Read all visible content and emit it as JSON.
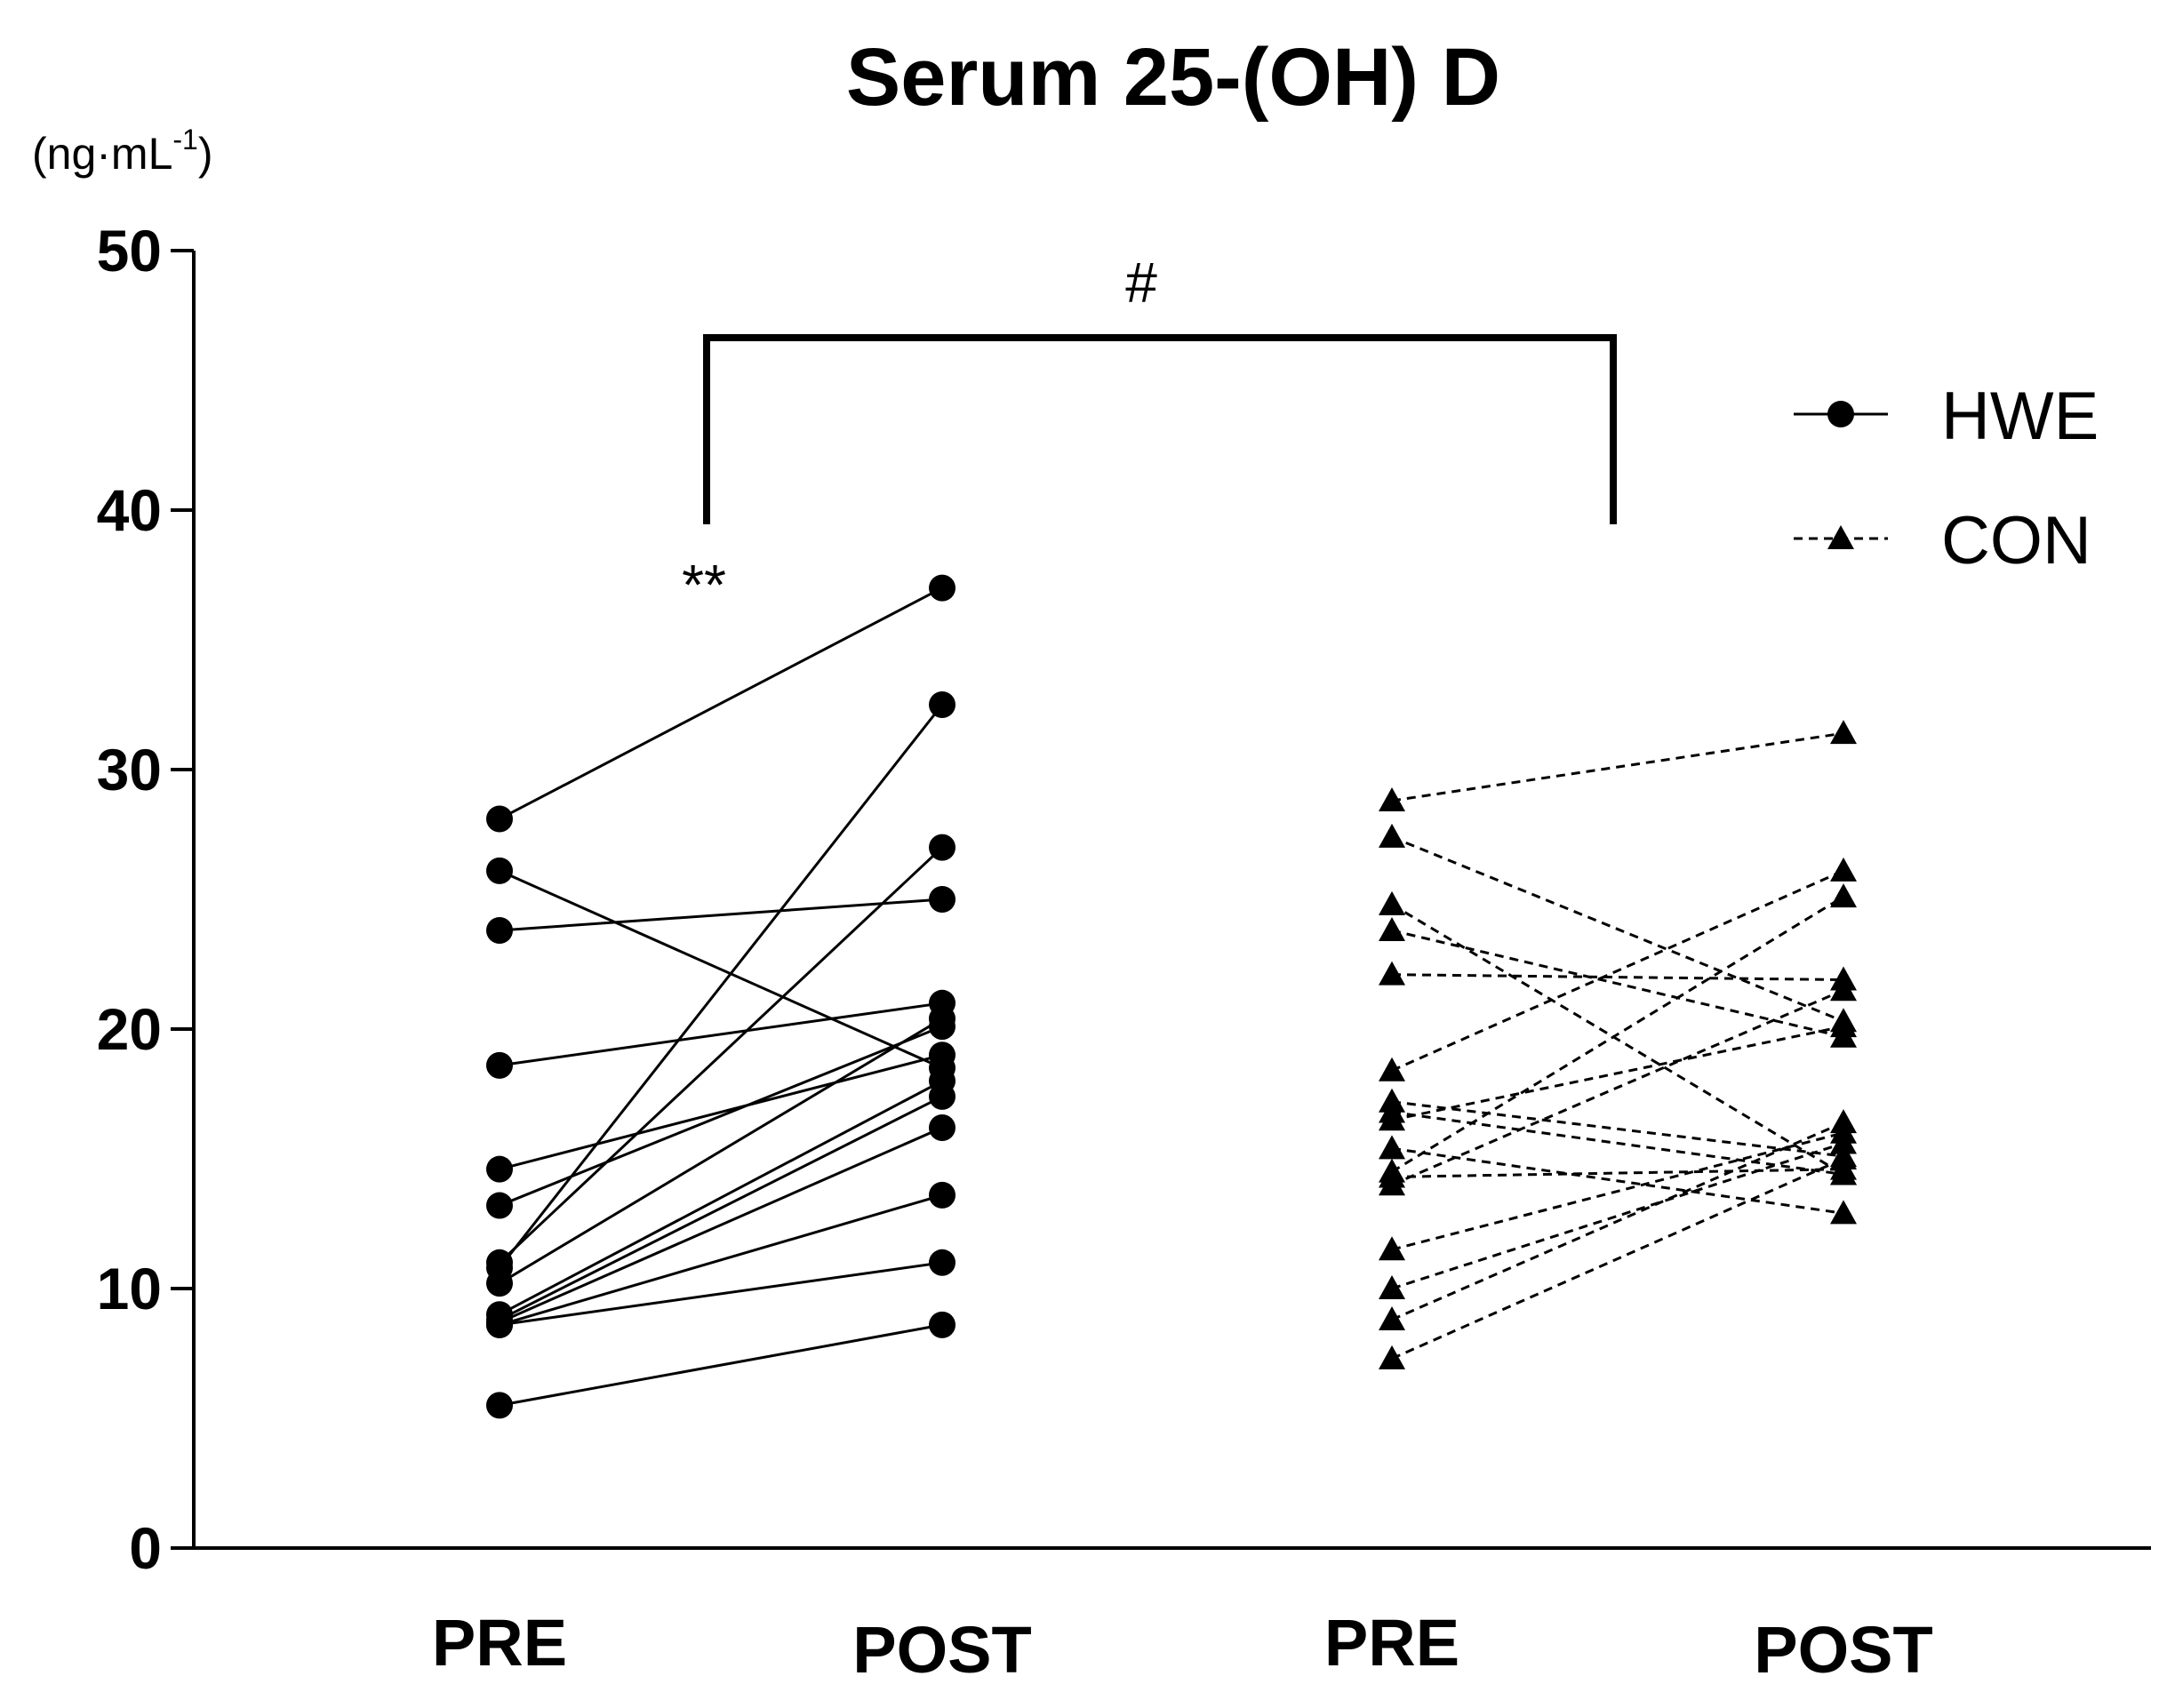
{
  "chart_data": {
    "type": "scatter",
    "title": "Serum 25-(OH) D",
    "ylabel": "(ng·mL",
    "ylabel_sup": "-1",
    "ylabel_close": ")",
    "ylim": [
      0,
      50
    ],
    "yticks": [
      "0",
      "10",
      "20",
      "30",
      "40",
      "50"
    ],
    "categories": [
      "PRE",
      "POST",
      "PRE",
      "POST"
    ],
    "legend": {
      "placement": "top-right",
      "entries": [
        {
          "name": "HWE",
          "marker": "circle",
          "line": "solid"
        },
        {
          "name": "CON",
          "marker": "triangle",
          "line": "dashed"
        }
      ]
    },
    "annotations": {
      "bracket_label": "#",
      "pair_label": "**"
    },
    "series": [
      {
        "name": "HWE",
        "pairs": [
          [
            28.1,
            37.0
          ],
          [
            26.1,
            18.5
          ],
          [
            23.8,
            25.0
          ],
          [
            18.6,
            21.0
          ],
          [
            14.6,
            19.0
          ],
          [
            13.2,
            20.1
          ],
          [
            11.0,
            27.0
          ],
          [
            10.8,
            32.5
          ],
          [
            10.2,
            20.4
          ],
          [
            9.0,
            18.0
          ],
          [
            8.8,
            17.4
          ],
          [
            8.7,
            16.2
          ],
          [
            8.6,
            13.6
          ],
          [
            8.6,
            11.0
          ],
          [
            5.5,
            8.6
          ]
        ]
      },
      {
        "name": "CON",
        "pairs": [
          [
            28.8,
            31.4
          ],
          [
            27.4,
            20.3
          ],
          [
            24.8,
            14.4
          ],
          [
            23.8,
            19.7
          ],
          [
            22.1,
            21.9
          ],
          [
            18.4,
            26.1
          ],
          [
            17.2,
            15.1
          ],
          [
            16.8,
            14.4
          ],
          [
            16.5,
            20.1
          ],
          [
            15.4,
            12.9
          ],
          [
            14.5,
            25.1
          ],
          [
            14.3,
            14.6
          ],
          [
            14.0,
            21.5
          ],
          [
            11.5,
            16.0
          ],
          [
            10.0,
            15.6
          ],
          [
            8.8,
            16.4
          ],
          [
            7.3,
            15.0
          ]
        ]
      }
    ]
  }
}
